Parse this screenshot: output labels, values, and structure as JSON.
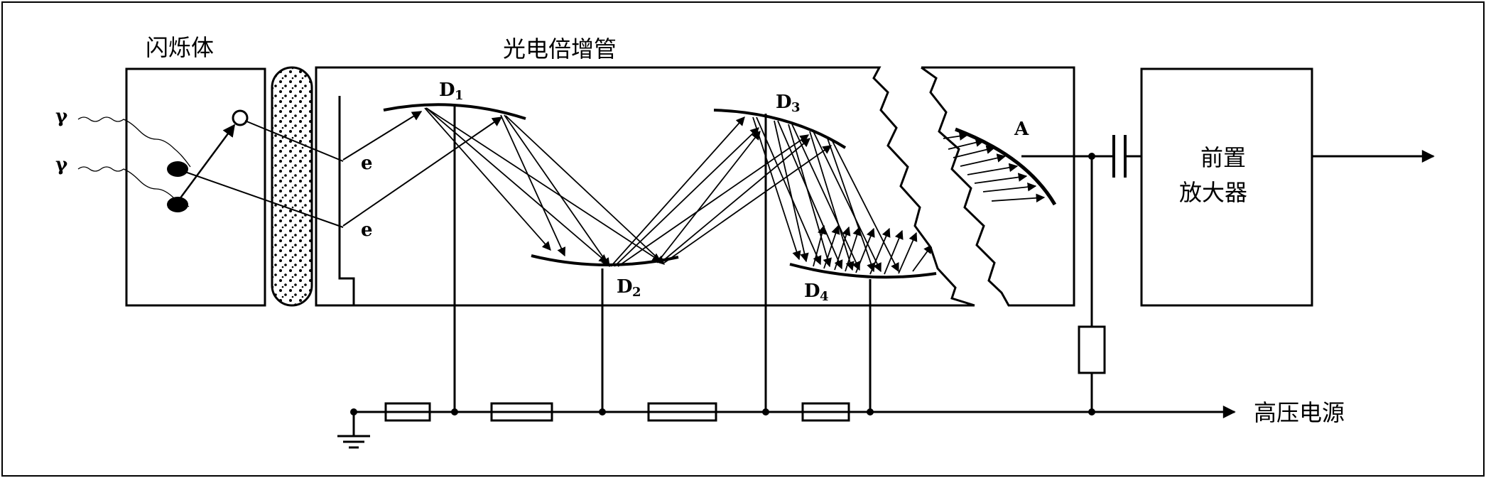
{
  "labels": {
    "scintillator": "闪烁体",
    "pmt": "光电倍增管",
    "preamp_line1": "前置",
    "preamp_line2": "放大器",
    "hv_supply": "高压电源",
    "gamma1": "γ",
    "gamma2": "γ",
    "electron1": "e",
    "electron2": "e",
    "anode": "A",
    "dynodes": [
      {
        "main": "D",
        "sub": "1"
      },
      {
        "main": "D",
        "sub": "2"
      },
      {
        "main": "D",
        "sub": "3"
      },
      {
        "main": "D",
        "sub": "4"
      }
    ]
  }
}
